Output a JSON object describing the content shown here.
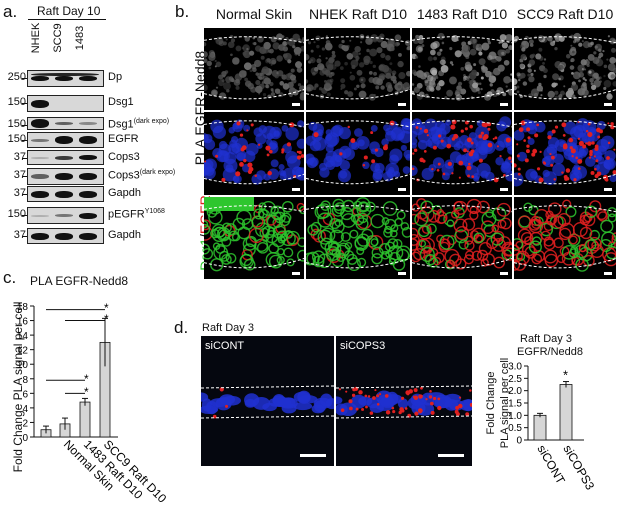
{
  "panel_a": {
    "label": "a.",
    "header": "Raft Day 10",
    "lanes": [
      "NHEK",
      "SCC9",
      "1483"
    ],
    "blots": [
      {
        "mw": [
          "250"
        ],
        "protein": "Dp",
        "sup": ""
      },
      {
        "mw": [
          "150"
        ],
        "protein": "Dsg1",
        "sup": ""
      },
      {
        "mw": [
          "150"
        ],
        "protein": "Dsg1",
        "sup": "(dark expo)"
      },
      {
        "mw": [
          "150"
        ],
        "protein": "EGFR",
        "sup": ""
      },
      {
        "mw": [
          "37"
        ],
        "protein": "Cops3",
        "sup": ""
      },
      {
        "mw": [
          "37"
        ],
        "protein": "Cops3",
        "sup": "(dark expo)"
      },
      {
        "mw": [
          "37"
        ],
        "protein": "Gapdh",
        "sup": ""
      },
      {
        "mw": [
          "150"
        ],
        "protein": "pEGFR",
        "sup": "Y1068"
      },
      {
        "mw": [
          "37"
        ],
        "protein": "Gapdh",
        "sup": ""
      }
    ]
  },
  "panel_b": {
    "label": "b.",
    "columns": [
      "Normal Skin",
      "NHEK Raft D10",
      "1483 Raft D10",
      "SCC9 Raft D10"
    ],
    "row_title": "PLA EGFR-Nedd8",
    "row3_label_a": "Dsg1",
    "row3_label_sep": "/",
    "row3_label_b": "EGFR",
    "colors": {
      "green": "#2ec62e",
      "red": "#e02020",
      "blue": "#2030d0"
    }
  },
  "panel_c": {
    "label": "c.",
    "title": "PLA EGFR-Nedd8",
    "ylabel": "Fold Change PLA signal per cell",
    "significance": "*",
    "chart_data": {
      "type": "bar",
      "categories": [
        "",
        "Normal Skin",
        "1483 Raft D10",
        "SCC9 Raft D10"
      ],
      "values": [
        1.0,
        1.8,
        4.8,
        13.0
      ],
      "errors": [
        0.5,
        0.8,
        0.5,
        3.3
      ],
      "ylim": [
        0,
        18
      ],
      "yticks": [
        "0",
        "2",
        "4",
        "6",
        "8",
        "10",
        "12",
        "14",
        "16",
        "18"
      ],
      "xlabel": "",
      "ylabel": "Fold Change PLA signal per cell",
      "title": "PLA EGFR-Nedd8"
    }
  },
  "panel_d": {
    "label": "d.",
    "header": "Raft Day 3",
    "image_labels": [
      "siCONT",
      "siCOPS3"
    ],
    "chart_title_1": "Raft Day 3",
    "chart_title_2": "EGFR/Nedd8",
    "ylabel_1": "Fold Change",
    "ylabel_2": "PLA signal per cell",
    "significance": "*",
    "chart_data": {
      "type": "bar",
      "categories": [
        "siCONT",
        "siCOPS3"
      ],
      "values": [
        1.0,
        2.25
      ],
      "errors": [
        0.08,
        0.12
      ],
      "ylim": [
        0,
        3.0
      ],
      "yticks": [
        "0",
        "0.5",
        "1.0",
        "1.5",
        "2.0",
        "2.5",
        "3.0"
      ],
      "xlabel": "",
      "ylabel": "Fold Change PLA signal per cell",
      "title": "Raft Day 3 EGFR/Nedd8"
    }
  }
}
